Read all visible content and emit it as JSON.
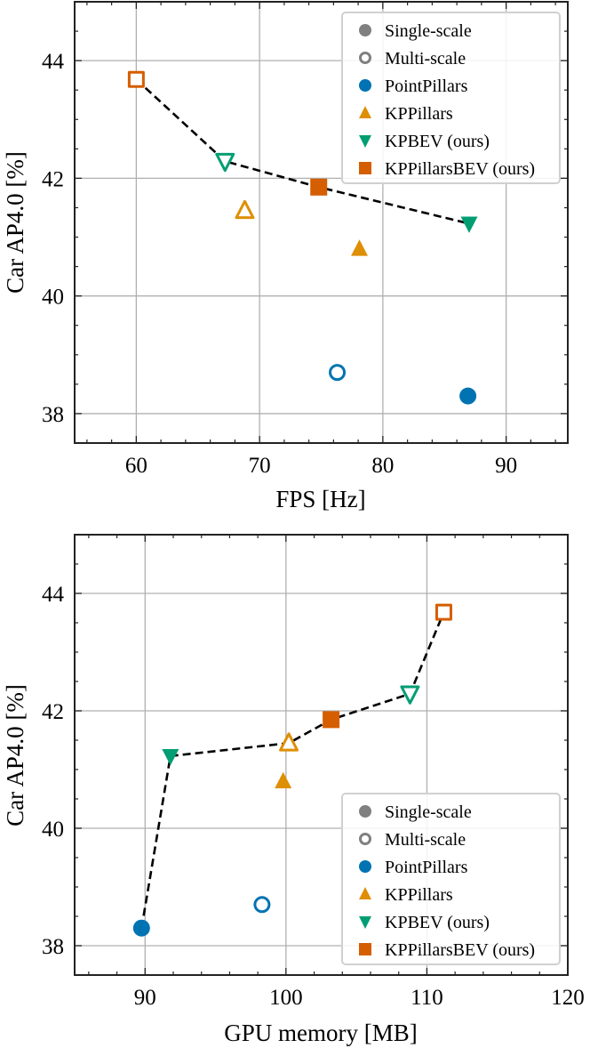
{
  "colors": {
    "PointPillars": "#0173b2",
    "KPPillars": "#de8f05",
    "KPBEV (ours)": "#029e73",
    "KPPillarsBEV (ours)": "#d55e00",
    "scale_legend": "#808080",
    "frontier": "#000000",
    "grid": "#b0b0b0"
  },
  "legend": [
    {
      "label": "Single-scale",
      "marker": "circle",
      "fill": "filled",
      "color_key": "scale_legend"
    },
    {
      "label": "Multi-scale",
      "marker": "circle",
      "fill": "open",
      "color_key": "scale_legend"
    },
    {
      "label": "PointPillars",
      "marker": "circle",
      "fill": "filled",
      "color_key": "PointPillars"
    },
    {
      "label": "KPPillars",
      "marker": "triangle-up",
      "fill": "filled",
      "color_key": "KPPillars"
    },
    {
      "label": "KPBEV (ours)",
      "marker": "triangle-down",
      "fill": "filled",
      "color_key": "KPBEV (ours)"
    },
    {
      "label": "KPPillarsBEV (ours)",
      "marker": "square",
      "fill": "filled",
      "color_key": "KPPillarsBEV (ours)"
    }
  ],
  "chart_data": [
    {
      "type": "scatter",
      "xlabel": "FPS [Hz]",
      "ylabel": "Car AP4.0 [%]",
      "xlim": [
        55,
        95
      ],
      "ylim": [
        37.5,
        45
      ],
      "xticks": [
        60,
        70,
        80,
        90
      ],
      "yticks": [
        38,
        40,
        42,
        44
      ],
      "grid": true,
      "legend_position": "top-right",
      "points": [
        {
          "series": "PointPillars",
          "scale": "Single-scale",
          "x": 86.9,
          "y": 38.3
        },
        {
          "series": "PointPillars",
          "scale": "Multi-scale",
          "x": 76.3,
          "y": 38.7
        },
        {
          "series": "KPPillars",
          "scale": "Single-scale",
          "x": 78.1,
          "y": 40.8
        },
        {
          "series": "KPPillars",
          "scale": "Multi-scale",
          "x": 68.8,
          "y": 41.45
        },
        {
          "series": "KPBEV (ours)",
          "scale": "Single-scale",
          "x": 87.0,
          "y": 41.23
        },
        {
          "series": "KPBEV (ours)",
          "scale": "Multi-scale",
          "x": 67.2,
          "y": 42.29
        },
        {
          "series": "KPPillarsBEV (ours)",
          "scale": "Single-scale",
          "x": 74.8,
          "y": 41.85
        },
        {
          "series": "KPPillarsBEV (ours)",
          "scale": "Multi-scale",
          "x": 60.0,
          "y": 43.68
        }
      ],
      "frontier": [
        7,
        5,
        6,
        4
      ]
    },
    {
      "type": "scatter",
      "xlabel": "GPU memory [MB]",
      "ylabel": "Car AP4.0 [%]",
      "xlim": [
        85,
        120
      ],
      "ylim": [
        37.5,
        45
      ],
      "xticks": [
        90,
        100,
        110,
        120
      ],
      "yticks": [
        38,
        40,
        42,
        44
      ],
      "grid": true,
      "legend_position": "bottom-right",
      "points": [
        {
          "series": "PointPillars",
          "scale": "Single-scale",
          "x": 89.75,
          "y": 38.3
        },
        {
          "series": "PointPillars",
          "scale": "Multi-scale",
          "x": 98.3,
          "y": 38.7
        },
        {
          "series": "KPPillars",
          "scale": "Single-scale",
          "x": 99.8,
          "y": 40.8
        },
        {
          "series": "KPPillars",
          "scale": "Multi-scale",
          "x": 100.2,
          "y": 41.45
        },
        {
          "series": "KPBEV (ours)",
          "scale": "Single-scale",
          "x": 91.8,
          "y": 41.23
        },
        {
          "series": "KPBEV (ours)",
          "scale": "Multi-scale",
          "x": 108.8,
          "y": 42.29
        },
        {
          "series": "KPPillarsBEV (ours)",
          "scale": "Single-scale",
          "x": 103.2,
          "y": 41.85
        },
        {
          "series": "KPPillarsBEV (ours)",
          "scale": "Multi-scale",
          "x": 111.2,
          "y": 43.68
        }
      ],
      "frontier": [
        0,
        4,
        3,
        6,
        5,
        7
      ]
    }
  ]
}
